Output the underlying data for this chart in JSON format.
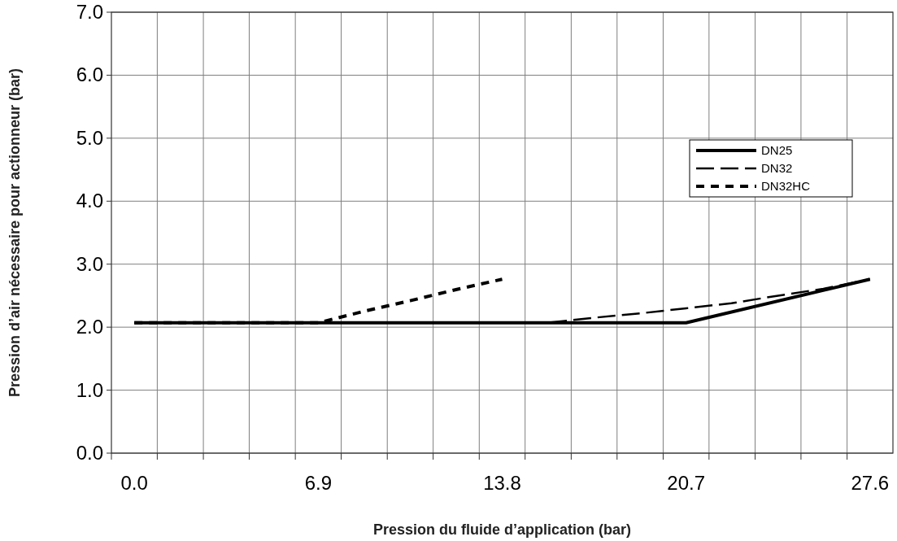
{
  "chart_data": {
    "type": "line",
    "xlabel": "Pression du fluide d’application (bar)",
    "ylabel": "Pression d’air nécessaire pour actionneur (bar)",
    "xlim": [
      -0.86,
      28.46
    ],
    "xticks": [
      {
        "value": 0,
        "label": "0.0"
      },
      6.9,
      13.8,
      20.7,
      27.6,
      {
        "value": 0.86,
        "label": null
      },
      {
        "value": 2.59,
        "label": null
      },
      {
        "value": 4.31,
        "label": null
      },
      {
        "value": 6.04,
        "label": null
      },
      {
        "value": 7.76,
        "label": null
      },
      {
        "value": 9.49,
        "label": null
      },
      {
        "value": 11.21,
        "label": null
      },
      {
        "value": 12.94,
        "label": null
      },
      {
        "value": 14.66,
        "label": null
      },
      {
        "value": 16.39,
        "label": null
      },
      {
        "value": 18.11,
        "label": null
      },
      {
        "value": 19.84,
        "label": null
      },
      {
        "value": 21.56,
        "label": null
      },
      {
        "value": 23.29,
        "label": null
      },
      {
        "value": 25.01,
        "label": null
      },
      {
        "value": 26.74,
        "label": null
      }
    ],
    "ylim": [
      0,
      7
    ],
    "yticks": [
      {
        "value": 0,
        "label": "0.0"
      },
      {
        "value": 1,
        "label": "1.0"
      },
      {
        "value": 2,
        "label": "2.0"
      },
      {
        "value": 3,
        "label": "3.0"
      },
      {
        "value": 4,
        "label": "4.0"
      },
      {
        "value": 5,
        "label": "5.0"
      },
      {
        "value": 6,
        "label": "6.0"
      },
      {
        "value": 7,
        "label": "7.0"
      }
    ],
    "grid": true,
    "legend": "top right",
    "series": [
      {
        "name": "DN25",
        "color": "#000000",
        "line_style": "solid",
        "x": [
          0,
          20.7,
          27.6
        ],
        "values": [
          2.07,
          2.07,
          2.76
        ]
      },
      {
        "name": "DN32",
        "color": "#000000",
        "line_style": "dashed",
        "x": [
          0,
          15.5,
          17.25,
          19.0,
          20.7,
          22.4,
          24.15,
          25.85,
          27.6
        ],
        "values": [
          2.07,
          2.07,
          2.15,
          2.22,
          2.3,
          2.38,
          2.5,
          2.61,
          2.76
        ]
      },
      {
        "name": "DN32HC",
        "color": "#000000",
        "line_style": "dotted",
        "x": [
          0,
          6.9,
          8.6,
          10.35,
          12.1,
          13.8
        ],
        "values": [
          2.07,
          2.07,
          2.25,
          2.42,
          2.6,
          2.76
        ]
      }
    ]
  }
}
